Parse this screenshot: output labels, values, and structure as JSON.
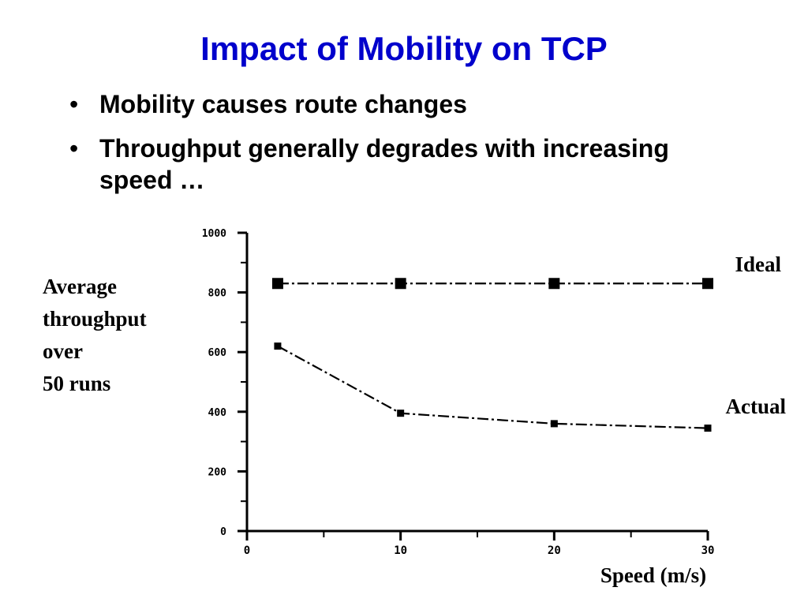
{
  "slide": {
    "title": "Impact of Mobility on TCP",
    "bullets": [
      "Mobility causes route changes",
      "Throughput generally degrades with increasing speed …"
    ],
    "bullet_glyph": "•"
  },
  "chart_data": {
    "type": "line",
    "ylabel_lines": [
      "Average",
      "throughput",
      "over",
      "50 runs"
    ],
    "xlabel": "Speed (m/s)",
    "xlim": [
      0,
      30
    ],
    "ylim": [
      0,
      1000
    ],
    "x_ticks": [
      0,
      10,
      20,
      30
    ],
    "x_tick_labels": [
      "0",
      "10",
      "20",
      "30"
    ],
    "y_ticks": [
      0,
      200,
      400,
      600,
      800,
      1000
    ],
    "y_tick_labels": [
      "0",
      "200",
      "400",
      "600",
      "800",
      "1000"
    ],
    "grid": false,
    "series": [
      {
        "name": "Ideal",
        "x": [
          2,
          10,
          20,
          30
        ],
        "y": [
          830,
          830,
          830,
          830
        ],
        "marker": "square",
        "color": "#000000"
      },
      {
        "name": "Actual",
        "x": [
          2,
          10,
          20,
          30
        ],
        "y": [
          620,
          395,
          360,
          345
        ],
        "marker": "square",
        "color": "#000000"
      }
    ]
  }
}
